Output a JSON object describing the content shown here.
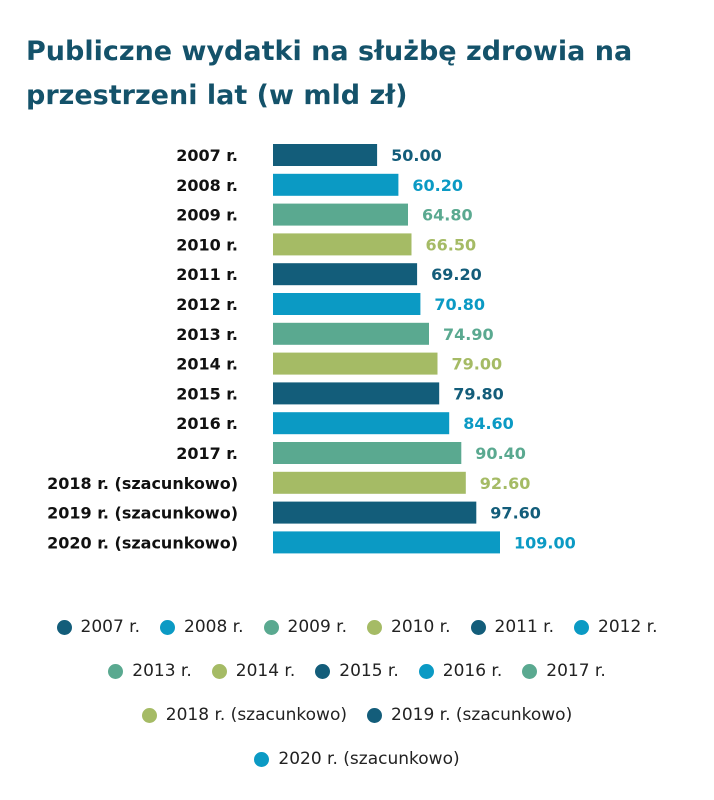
{
  "chart_data": {
    "type": "bar",
    "orientation": "horizontal",
    "title": "Publiczne wydatki na służbę zdrowia na przestrzeni lat (w mld zł)",
    "categories": [
      "2007 r.",
      "2008 r.",
      "2009 r.",
      "2010 r.",
      "2011 r.",
      "2012 r.",
      "2013 r.",
      "2014 r.",
      "2015 r.",
      "2016 r.",
      "2017 r.",
      "2018 r. (szacunkowo)",
      "2019 r. (szacunkowo)",
      "2020 r. (szacunkowo)"
    ],
    "values": [
      50.0,
      60.2,
      64.8,
      66.5,
      69.2,
      70.8,
      74.9,
      79.0,
      79.8,
      84.6,
      90.4,
      92.6,
      97.6,
      109.0
    ],
    "value_labels": [
      "50.00",
      "60.20",
      "64.80",
      "66.50",
      "69.20",
      "70.80",
      "74.90",
      "79.00",
      "79.80",
      "84.60",
      "90.40",
      "92.60",
      "97.60",
      "109.00"
    ],
    "colors": [
      "#135d7a",
      "#0b9ac4",
      "#5aa990",
      "#a5bb65",
      "#135d7a",
      "#0b9ac4",
      "#5aa990",
      "#a5bb65",
      "#135d7a",
      "#0b9ac4",
      "#5aa990",
      "#a5bb65",
      "#135d7a",
      "#0b9ac4"
    ],
    "xlim": [
      0,
      109
    ],
    "grid": false,
    "legend_position": "bottom",
    "xlabel": "",
    "ylabel": ""
  },
  "legend": {
    "rows": [
      [
        0,
        1,
        2,
        3,
        4,
        5
      ],
      [
        6,
        7,
        8,
        9,
        10
      ],
      [
        11,
        12
      ],
      [
        13
      ]
    ]
  }
}
